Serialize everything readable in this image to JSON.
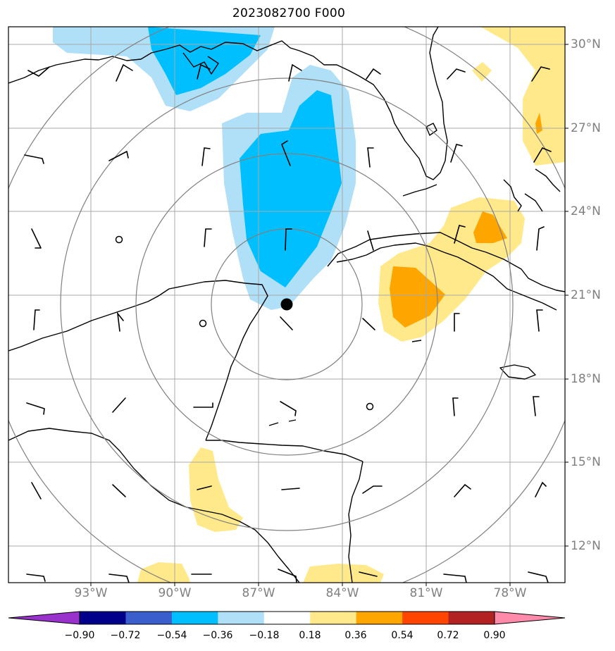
{
  "title": "2023082700 F000",
  "lat_labels": [
    "30°N",
    "27°N",
    "24°N",
    "21°N",
    "18°N",
    "15°N",
    "12°N"
  ],
  "lon_labels": [
    "93°W",
    "90°W",
    "87°W",
    "84°W",
    "81°W",
    "78°W"
  ],
  "colorbar": {
    "ticks": [
      "−0.90",
      "−0.72",
      "−0.54",
      "−0.36",
      "−0.18",
      "0.18",
      "0.36",
      "0.54",
      "0.72",
      "0.90"
    ],
    "colors": [
      "#9932cc",
      "#00008b",
      "#3a5fcd",
      "#00bfff",
      "#b0e0f8",
      "#ffffff",
      "#ffe98a",
      "#ffa500",
      "#ff4500",
      "#b22222",
      "#ff8aaa"
    ]
  },
  "storm_center": {
    "lat": 20.6,
    "lon": -86.1
  }
}
